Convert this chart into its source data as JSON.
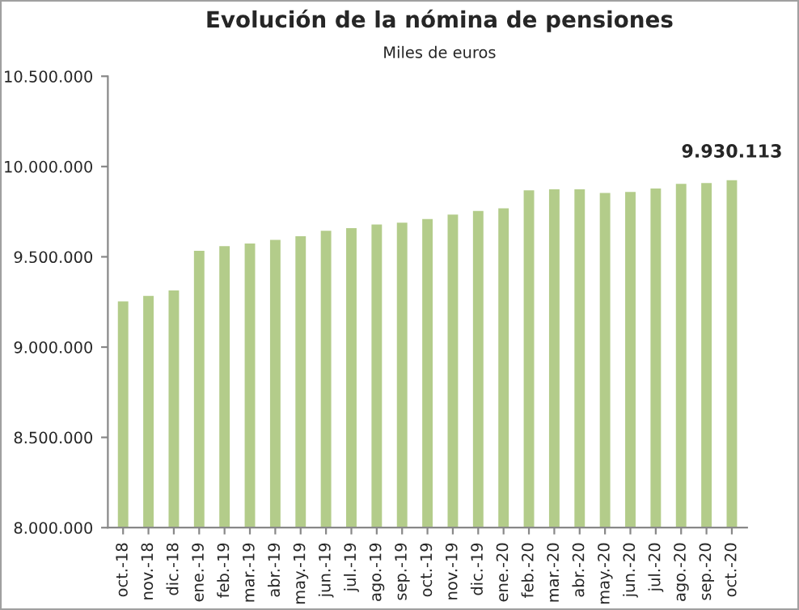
{
  "chart_data": {
    "type": "bar",
    "title": "Evolución de la nómina de pensiones",
    "subtitle": "Miles de euros",
    "categories": [
      "oct.-18",
      "nov.-18",
      "dic.-18",
      "ene.-19",
      "feb.-19",
      "mar.-19",
      "abr.-19",
      "may.-19",
      "jun.-19",
      "jul.-19",
      "ago.-19",
      "sep.-19",
      "oct.-19",
      "nov.-19",
      "dic.-19",
      "ene.-20",
      "feb.-20",
      "mar.-20",
      "abr.-20",
      "may.-20",
      "jun.-20",
      "jul.-20",
      "ago.-20",
      "sep.-20",
      "oct.-20"
    ],
    "values": [
      9260000,
      9290000,
      9320000,
      9540000,
      9565000,
      9580000,
      9600000,
      9620000,
      9650000,
      9665000,
      9685000,
      9695000,
      9715000,
      9740000,
      9760000,
      9775000,
      9875000,
      9880000,
      9880000,
      9860000,
      9865000,
      9885000,
      9910000,
      9915000,
      9930113
    ],
    "value_labels": [
      null,
      null,
      null,
      null,
      null,
      null,
      null,
      null,
      null,
      null,
      null,
      null,
      null,
      null,
      null,
      null,
      null,
      null,
      null,
      null,
      null,
      null,
      null,
      null,
      "9.930.113"
    ],
    "color": "#b3cc8a",
    "ylim": [
      8000000,
      10500000
    ],
    "yticks": [
      {
        "value": 8000000,
        "label": "8.000.000"
      },
      {
        "value": 8500000,
        "label": "8.500.000"
      },
      {
        "value": 9000000,
        "label": "9.000.000"
      },
      {
        "value": 9500000,
        "label": "9.500.000"
      },
      {
        "value": 10000000,
        "label": "10.000.000"
      },
      {
        "value": 10500000,
        "label": "10.500.000"
      }
    ],
    "grid": false
  }
}
